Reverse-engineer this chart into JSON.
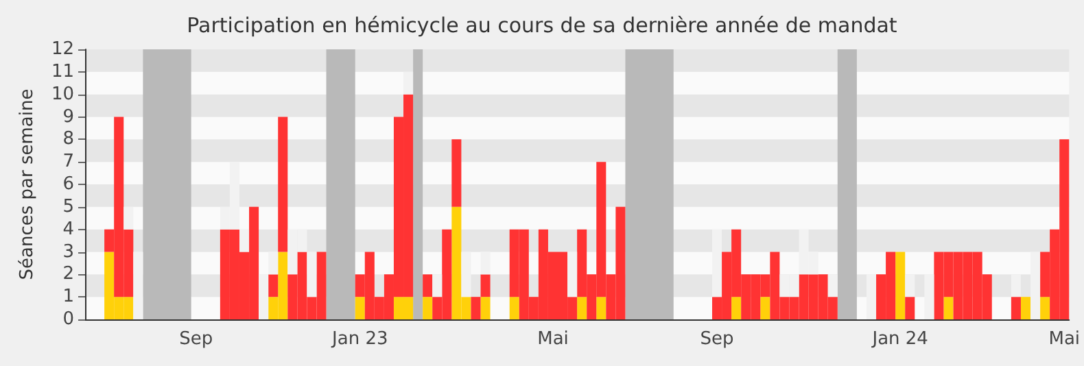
{
  "chart_data": {
    "type": "bar",
    "title": "Participation en hémicycle au cours de sa dernière année de mandat",
    "ylabel": "Séances par semaine",
    "categories": [
      null,
      null,
      null,
      null,
      null,
      null,
      null,
      null,
      null,
      null,
      null,
      "Sep",
      null,
      null,
      null,
      null,
      null,
      null,
      null,
      null,
      null,
      null,
      null,
      null,
      null,
      null,
      null,
      null,
      "Jan 23",
      null,
      null,
      null,
      null,
      null,
      null,
      null,
      null,
      null,
      null,
      null,
      null,
      null,
      null,
      null,
      null,
      null,
      null,
      null,
      "Mai",
      null,
      null,
      null,
      null,
      null,
      null,
      null,
      null,
      null,
      null,
      null,
      null,
      null,
      null,
      null,
      null,
      "Sep",
      null,
      null,
      null,
      null,
      null,
      null,
      null,
      null,
      null,
      null,
      null,
      null,
      null,
      null,
      null,
      null,
      null,
      null,
      "Jan 24",
      null,
      null,
      null,
      null,
      null,
      null,
      null,
      null,
      null,
      null,
      null,
      null,
      null,
      null,
      null,
      null,
      "Mai"
    ],
    "series": [
      {
        "color": "#ffd10a",
        "values": [
          0,
          0,
          3,
          1,
          1,
          0,
          0,
          0,
          0,
          0,
          0,
          0,
          0,
          0,
          0,
          0,
          0,
          0,
          0,
          1,
          3,
          0,
          0,
          0,
          0,
          0,
          0,
          0,
          1,
          0,
          0,
          0,
          1,
          1,
          0,
          1,
          0,
          0,
          5,
          1,
          0,
          1,
          0,
          0,
          1,
          0,
          0,
          0,
          0,
          0,
          0,
          1,
          0,
          1,
          0,
          0,
          0,
          0,
          0,
          0,
          0,
          0,
          0,
          0,
          0,
          0,
          0,
          1,
          0,
          0,
          1,
          0,
          0,
          0,
          0,
          0,
          0,
          0,
          0,
          0,
          0,
          0,
          0,
          0,
          3,
          0,
          0,
          0,
          0,
          1,
          0,
          0,
          0,
          0,
          0,
          0,
          0,
          1,
          0,
          1,
          0,
          0
        ]
      },
      {
        "color": "#ff3333",
        "values": [
          0,
          0,
          1,
          8,
          3,
          0,
          0,
          0,
          0,
          0,
          0,
          0,
          0,
          0,
          4,
          4,
          3,
          5,
          0,
          1,
          6,
          2,
          3,
          1,
          3,
          0,
          0,
          0,
          1,
          3,
          1,
          2,
          8,
          9,
          0,
          1,
          1,
          4,
          3,
          0,
          1,
          1,
          0,
          0,
          3,
          4,
          1,
          4,
          3,
          3,
          1,
          3,
          2,
          6,
          2,
          5,
          0,
          0,
          0,
          0,
          0,
          0,
          0,
          0,
          0,
          1,
          3,
          3,
          2,
          2,
          1,
          3,
          1,
          1,
          2,
          2,
          2,
          1,
          0,
          0,
          0,
          0,
          2,
          3,
          0,
          1,
          0,
          0,
          3,
          2,
          3,
          3,
          3,
          2,
          0,
          0,
          1,
          0,
          0,
          2,
          4,
          8
        ]
      },
      {
        "color": "#f2f2f2",
        "values": [
          0,
          0,
          0,
          0,
          1,
          3,
          0,
          0,
          0,
          0,
          0,
          0,
          0,
          0,
          1,
          3,
          1,
          0,
          2,
          1,
          0,
          2,
          1,
          2,
          0,
          0,
          0,
          0,
          0,
          0,
          0,
          0,
          0,
          1,
          0,
          0,
          1,
          0,
          0,
          2,
          0,
          1,
          0,
          0,
          0,
          0,
          0,
          0,
          0,
          0,
          2,
          0,
          0,
          0,
          0,
          0,
          0,
          0,
          0,
          0,
          0,
          0,
          0,
          0,
          0,
          3,
          0,
          0,
          0,
          0,
          0,
          0,
          1,
          1,
          2,
          1,
          0,
          1,
          0,
          0,
          0,
          2,
          0,
          0,
          0,
          1,
          0,
          2,
          0,
          0,
          0,
          0,
          0,
          0,
          0,
          0,
          1,
          0,
          3,
          0,
          0,
          0
        ]
      }
    ],
    "stacked": true,
    "ylim": [
      0,
      12
    ],
    "yticks": [
      0,
      1,
      2,
      3,
      4,
      5,
      6,
      7,
      8,
      9,
      10,
      11,
      12
    ]
  }
}
